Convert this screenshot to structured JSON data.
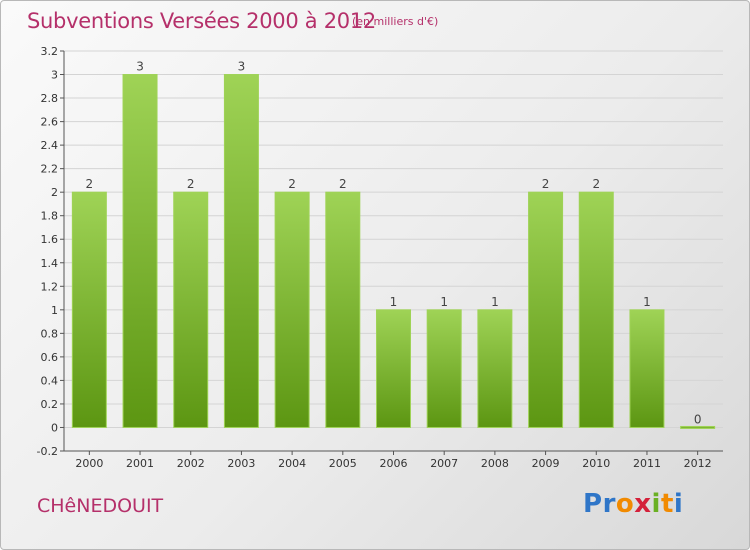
{
  "chart_data": {
    "type": "bar",
    "title": "Subventions Versées 2000 à 2012",
    "subtitle": "(en milliers d'€)",
    "categories": [
      "2000",
      "2001",
      "2002",
      "2003",
      "2004",
      "2005",
      "2006",
      "2007",
      "2008",
      "2009",
      "2010",
      "2011",
      "2012"
    ],
    "values": [
      2,
      3,
      2,
      3,
      2,
      2,
      1,
      1,
      1,
      2,
      2,
      1,
      0
    ],
    "value_labels": [
      "2",
      "3",
      "2",
      "3",
      "2",
      "2",
      "1",
      "1",
      "1",
      "2",
      "2",
      "1",
      "0"
    ],
    "ylim": [
      -0.2,
      3.2
    ],
    "yticks": [
      -0.2,
      0,
      0.2,
      0.4,
      0.6,
      0.8,
      1,
      1.2,
      1.4,
      1.6,
      1.8,
      2,
      2.2,
      2.4,
      2.6,
      2.8,
      3,
      3.2
    ],
    "ytick_labels": [
      "-0.2",
      "0",
      "0.2",
      "0.4",
      "0.6",
      "0.8",
      "1",
      "1.2",
      "1.4",
      "1.6",
      "1.8",
      "2",
      "2.2",
      "2.4",
      "2.6",
      "2.8",
      "3",
      "3.2"
    ],
    "grid": true,
    "xlabel": "",
    "ylabel": "",
    "bar_color": "#7cb82f",
    "bar_color_light": "#9fd356",
    "bar_color_dark": "#5c9612",
    "grid_color": "#d4d4d4",
    "title_color": "#b5306a"
  },
  "footer": {
    "commune": "CHêNEDOUIT",
    "logo_letters": [
      {
        "char": "P",
        "color": "#2f76c8"
      },
      {
        "char": "r",
        "color": "#2f76c8"
      },
      {
        "char": "o",
        "color": "#f18a00"
      },
      {
        "char": "x",
        "color": "#d4203a"
      },
      {
        "char": "i",
        "color": "#6ab023"
      },
      {
        "char": "t",
        "color": "#f18a00"
      },
      {
        "char": "i",
        "color": "#2f76c8"
      }
    ]
  }
}
